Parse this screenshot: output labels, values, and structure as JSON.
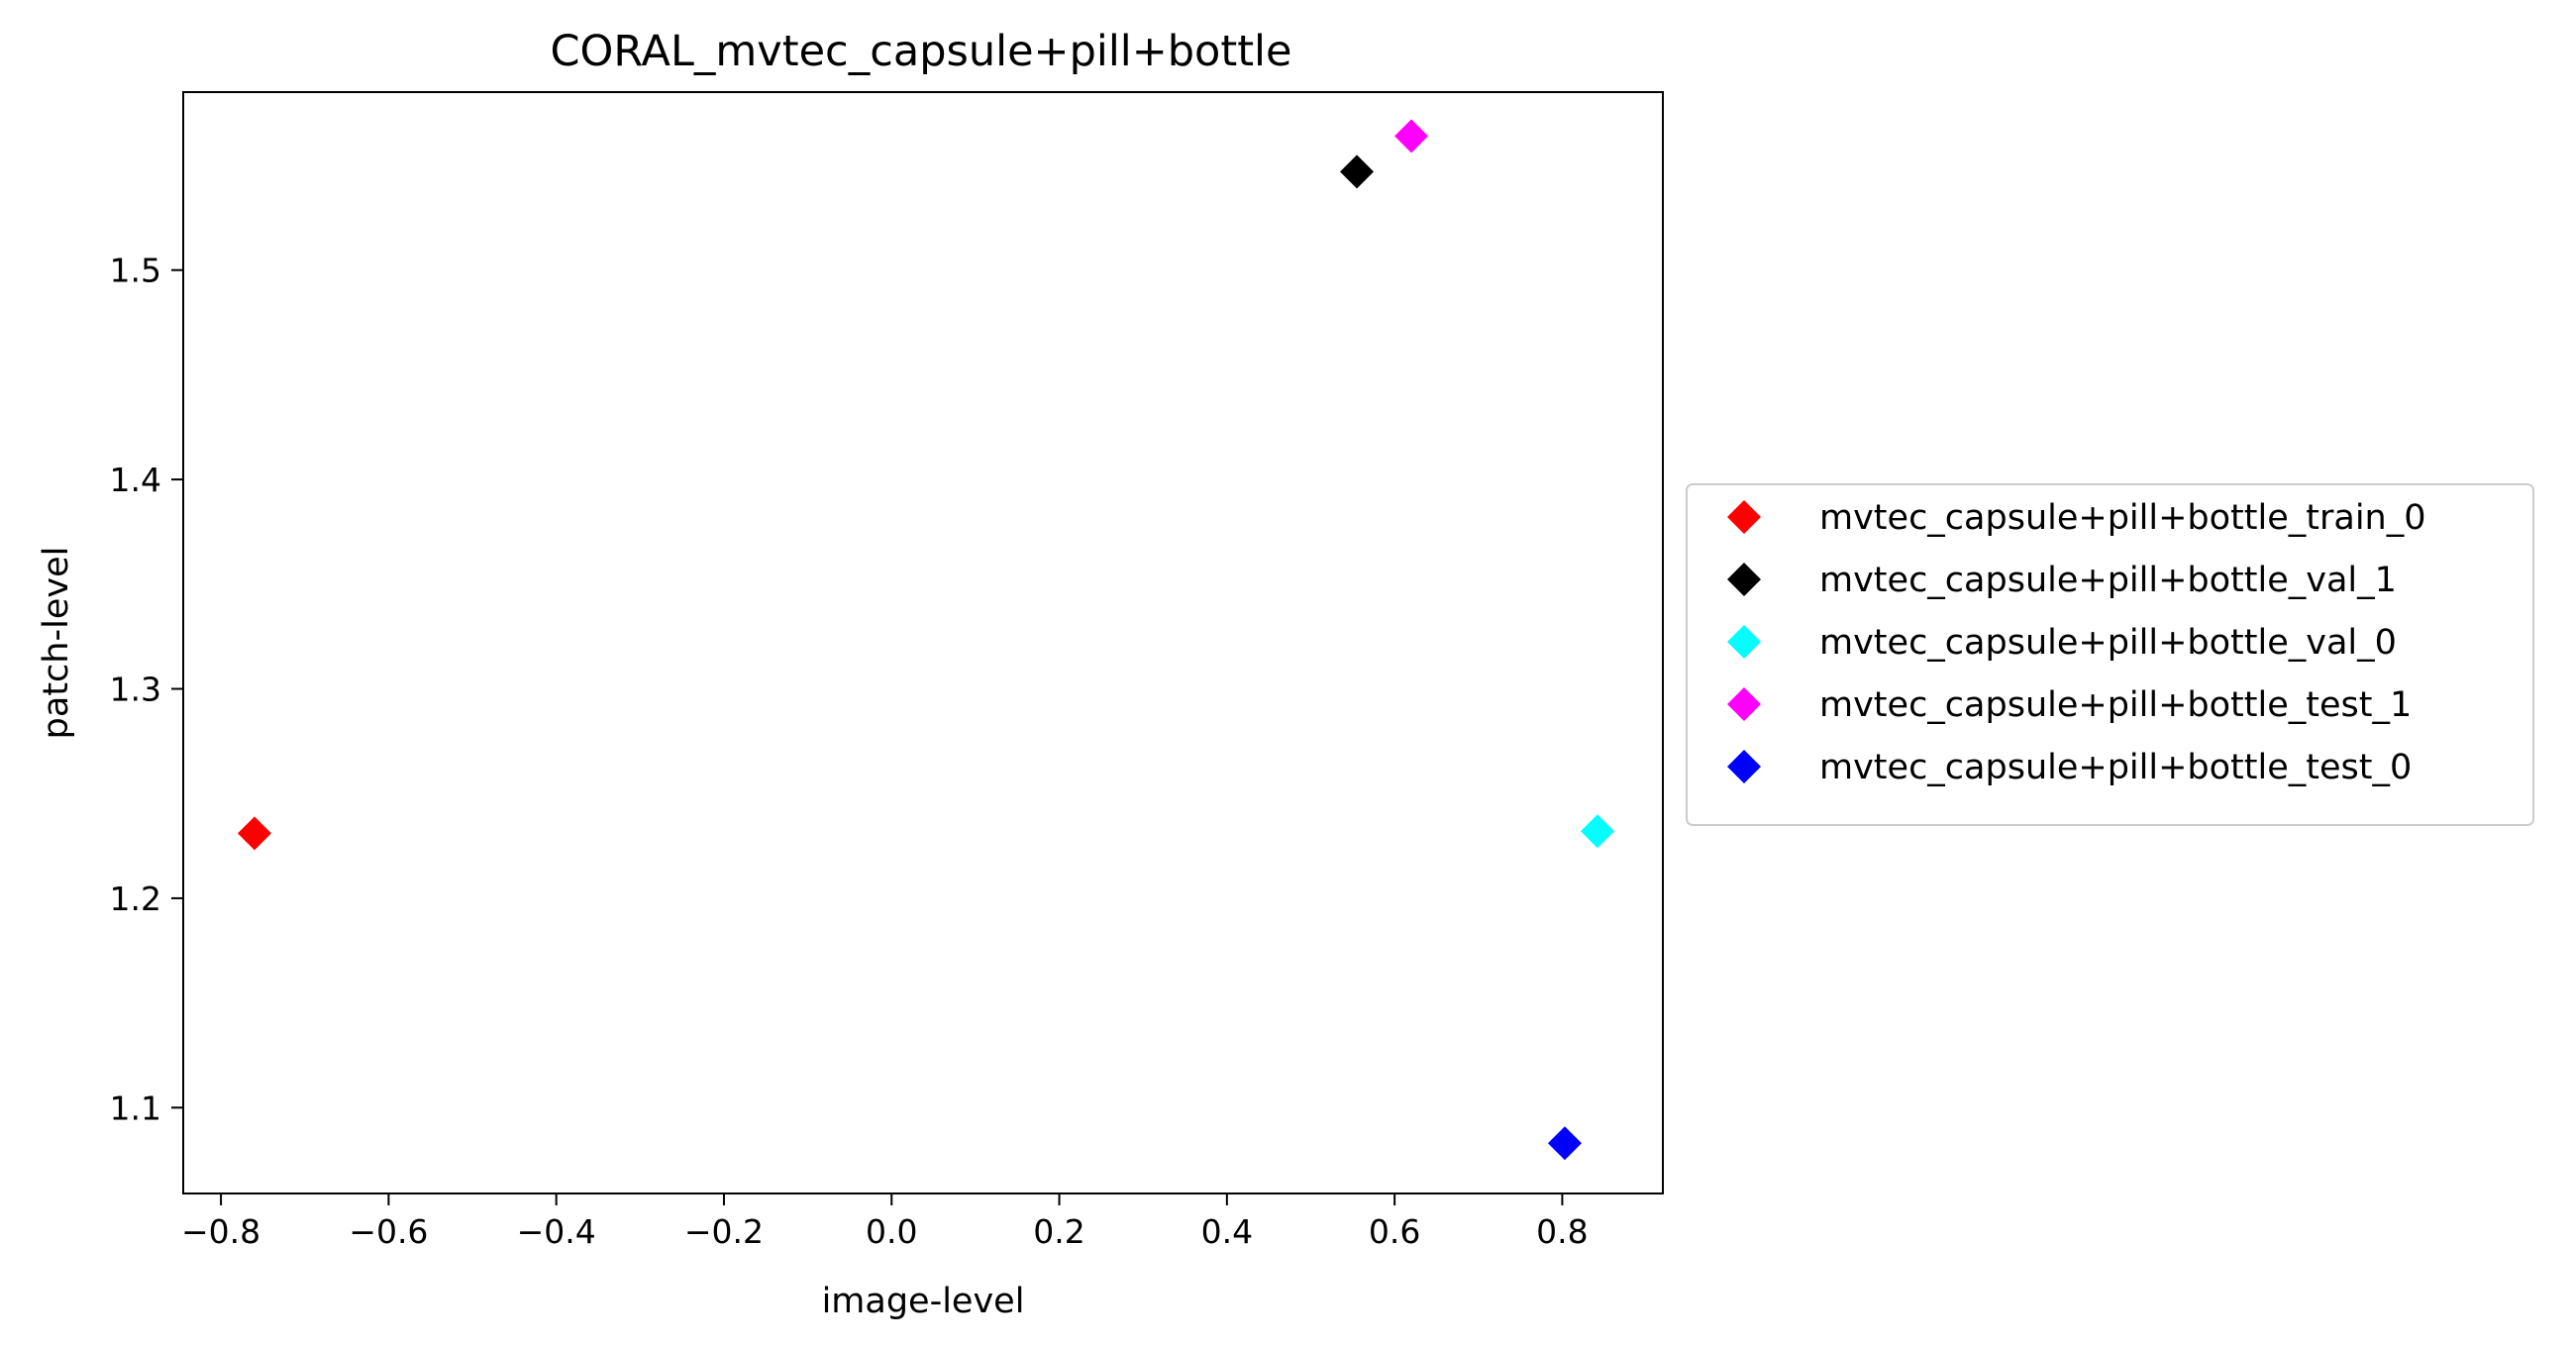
{
  "chart_data": {
    "type": "scatter",
    "title": "CORAL_mvtec_capsule+pill+bottle",
    "xlabel": "image-level",
    "ylabel": "patch-level",
    "xlim": [
      -0.845,
      0.92
    ],
    "ylim": [
      1.059,
      1.585
    ],
    "xticks": [
      -0.8,
      -0.6,
      -0.4,
      -0.2,
      0.0,
      0.2,
      0.4,
      0.6,
      0.8
    ],
    "xtick_labels": [
      "−0.8",
      "−0.6",
      "−0.4",
      "−0.2",
      "0.0",
      "0.2",
      "0.4",
      "0.6",
      "0.8"
    ],
    "yticks": [
      1.1,
      1.2,
      1.3,
      1.4,
      1.5
    ],
    "ytick_labels": [
      "1.1",
      "1.2",
      "1.3",
      "1.4",
      "1.5"
    ],
    "marker": "diamond",
    "grid": false,
    "legend_position": "outside-right",
    "series": [
      {
        "name": "mvtec_capsule+pill+bottle_train_0",
        "color": "#ff0000",
        "x": [
          -0.76
        ],
        "y": [
          1.231
        ]
      },
      {
        "name": "mvtec_capsule+pill+bottle_val_1",
        "color": "#000000",
        "x": [
          0.555
        ],
        "y": [
          1.547
        ]
      },
      {
        "name": "mvtec_capsule+pill+bottle_val_0",
        "color": "#00ffff",
        "x": [
          0.842
        ],
        "y": [
          1.232
        ]
      },
      {
        "name": "mvtec_capsule+pill+bottle_test_1",
        "color": "#ff00ff",
        "x": [
          0.62
        ],
        "y": [
          1.564
        ]
      },
      {
        "name": "mvtec_capsule+pill+bottle_test_0",
        "color": "#0000ff",
        "x": [
          0.803
        ],
        "y": [
          1.083
        ]
      }
    ]
  }
}
